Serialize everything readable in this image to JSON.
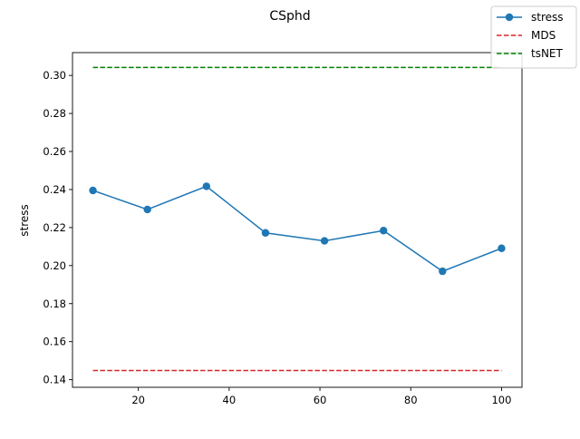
{
  "chart_data": {
    "type": "line",
    "title": "CSphd",
    "xlabel": "",
    "ylabel": "stress",
    "xlim": [
      5.5,
      104.5
    ],
    "ylim": [
      0.136,
      0.312
    ],
    "xticks": [
      20,
      40,
      60,
      80,
      100
    ],
    "yticks": [
      0.14,
      0.16,
      0.18,
      0.2,
      0.22,
      0.24,
      0.26,
      0.28,
      0.3
    ],
    "xtick_labels": [
      "20",
      "40",
      "60",
      "80",
      "100"
    ],
    "ytick_labels": [
      "0.14",
      "0.16",
      "0.18",
      "0.20",
      "0.22",
      "0.24",
      "0.26",
      "0.28",
      "0.30"
    ],
    "grid": false,
    "legend_position": "top-right",
    "series": [
      {
        "name": "stress",
        "style": "solid-marker",
        "color": "#1f77b4",
        "x": [
          10,
          22,
          35,
          48,
          61,
          74,
          87,
          100
        ],
        "values": [
          0.2395,
          0.2295,
          0.2417,
          0.2172,
          0.213,
          0.2184,
          0.197,
          0.2091
        ]
      },
      {
        "name": "MDS",
        "style": "dashed",
        "color": "#d62728",
        "x": [
          10,
          100
        ],
        "values": [
          0.1448,
          0.1448
        ]
      },
      {
        "name": "tsNET",
        "style": "dashed",
        "color": "#008000",
        "x": [
          10,
          100
        ],
        "values": [
          0.3042,
          0.3042
        ]
      }
    ]
  }
}
